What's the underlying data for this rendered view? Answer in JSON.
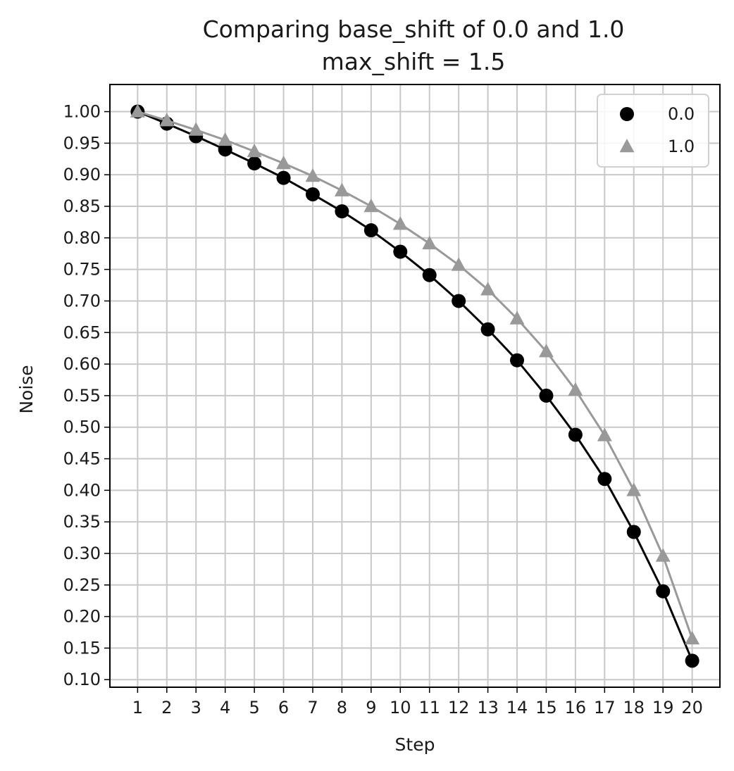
{
  "chart_data": {
    "type": "line",
    "title": "Comparing base_shift of 0.0 and 1.0",
    "subtitle": "max_shift = 1.5",
    "xlabel": "Step",
    "ylabel": "Noise",
    "x": [
      1,
      2,
      3,
      4,
      5,
      6,
      7,
      8,
      9,
      10,
      11,
      12,
      13,
      14,
      15,
      16,
      17,
      18,
      19,
      20
    ],
    "xlim": [
      0.05,
      20.95
    ],
    "ylim": [
      0.088,
      1.043
    ],
    "yticks": [
      "1.00",
      "0.95",
      "0.90",
      "0.85",
      "0.80",
      "0.75",
      "0.70",
      "0.65",
      "0.60",
      "0.55",
      "0.50",
      "0.45",
      "0.40",
      "0.35",
      "0.30",
      "0.25",
      "0.20",
      "0.15",
      "0.10"
    ],
    "xticks": [
      "1",
      "2",
      "3",
      "4",
      "5",
      "6",
      "7",
      "8",
      "9",
      "10",
      "11",
      "12",
      "13",
      "14",
      "15",
      "16",
      "17",
      "18",
      "19",
      "20"
    ],
    "grid": true,
    "legend_position": "top-right",
    "series": [
      {
        "name": "0.0",
        "marker": "circle",
        "color": "#000000",
        "values": [
          1.0,
          0.981,
          0.961,
          0.94,
          0.918,
          0.895,
          0.869,
          0.842,
          0.812,
          0.778,
          0.741,
          0.7,
          0.655,
          0.606,
          0.55,
          0.488,
          0.418,
          0.334,
          0.24,
          0.13
        ]
      },
      {
        "name": "1.0",
        "marker": "triangle",
        "color": "#999999",
        "values": [
          1.0,
          0.986,
          0.971,
          0.955,
          0.937,
          0.918,
          0.898,
          0.875,
          0.85,
          0.822,
          0.791,
          0.757,
          0.718,
          0.672,
          0.62,
          0.559,
          0.487,
          0.4,
          0.296,
          0.165
        ]
      }
    ]
  }
}
